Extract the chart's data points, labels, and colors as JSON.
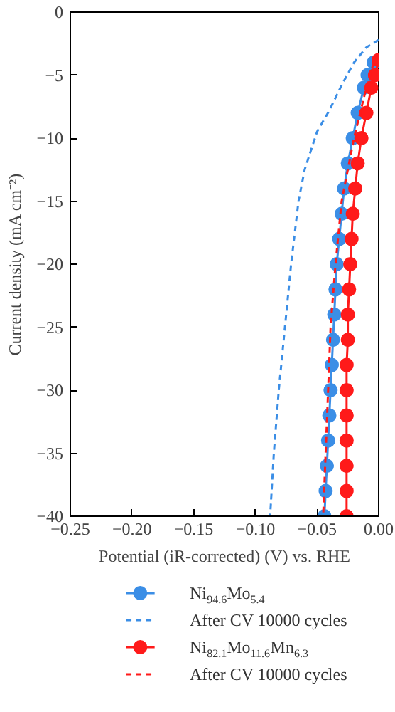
{
  "chart_data": {
    "type": "line",
    "xlabel": "Potential (iR-corrected) (V) vs. RHE",
    "ylabel": "Current density (mA cm⁻²)",
    "xlim": [
      -0.25,
      0.0
    ],
    "ylim": [
      -40,
      0
    ],
    "xticks": [
      {
        "value": -0.25,
        "label": "−0.25"
      },
      {
        "value": -0.2,
        "label": "−0.20"
      },
      {
        "value": -0.15,
        "label": "−0.15"
      },
      {
        "value": -0.1,
        "label": "−0.10"
      },
      {
        "value": -0.05,
        "label": "−0.05"
      },
      {
        "value": 0.0,
        "label": "0.00"
      }
    ],
    "yticks": [
      {
        "value": 0,
        "label": "0"
      },
      {
        "value": -5,
        "label": "−5"
      },
      {
        "value": -10,
        "label": "−10"
      },
      {
        "value": -15,
        "label": "−15"
      },
      {
        "value": -20,
        "label": "−20"
      },
      {
        "value": -25,
        "label": "−25"
      },
      {
        "value": -30,
        "label": "−30"
      },
      {
        "value": -35,
        "label": "−35"
      },
      {
        "value": -40,
        "label": "−40"
      }
    ],
    "grid": false,
    "legend": "bottom",
    "series": [
      {
        "name": "Ni$_{94.6}$Mo$_{5.4}$",
        "color": "#3b8ee6",
        "marker": "circle",
        "line_style": "solid",
        "x": [
          -0.004,
          -0.009,
          -0.012,
          -0.017,
          -0.021,
          -0.025,
          -0.028,
          -0.03,
          -0.032,
          -0.034,
          -0.035,
          -0.036,
          -0.037,
          -0.038,
          -0.039,
          -0.04,
          -0.041,
          -0.042,
          -0.043,
          -0.044
        ],
        "values": [
          -4,
          -5,
          -6,
          -8,
          -10,
          -12,
          -14,
          -16,
          -18,
          -20,
          -22,
          -24,
          -26,
          -28,
          -30,
          -32,
          -34,
          -36,
          -38,
          -40
        ]
      },
      {
        "name": "After CV 10000 cycles",
        "color": "#3b8ee6",
        "marker": "none",
        "line_style": "dashed",
        "x": [
          0.0,
          -0.01,
          -0.02,
          -0.03,
          -0.04,
          -0.05,
          -0.06,
          -0.065,
          -0.071,
          -0.076,
          -0.081,
          -0.085,
          -0.088
        ],
        "values": [
          -2.2,
          -2.8,
          -4,
          -5.8,
          -7.8,
          -9.5,
          -12.5,
          -15,
          -20,
          -25,
          -30,
          -35,
          -40
        ]
      },
      {
        "name": "Ni$_{82.1}$Mo$_{11.6}$Mn$_{6.3}$",
        "color": "#ff1a1a",
        "marker": "circle",
        "line_style": "solid",
        "x": [
          0.0,
          -0.003,
          -0.006,
          -0.01,
          -0.014,
          -0.017,
          -0.019,
          -0.021,
          -0.022,
          -0.023,
          -0.024,
          -0.025,
          -0.025,
          -0.026,
          -0.026,
          -0.026,
          -0.026,
          -0.026,
          -0.026,
          -0.026
        ],
        "values": [
          -3.8,
          -5,
          -6,
          -8,
          -10,
          -12,
          -14,
          -16,
          -18,
          -20,
          -22,
          -24,
          -26,
          -28,
          -30,
          -32,
          -34,
          -36,
          -38,
          -40
        ]
      },
      {
        "name": "After CV 10000 cycles",
        "color": "#ff1a1a",
        "marker": "none",
        "line_style": "dashed",
        "x": [
          -0.004,
          -0.01,
          -0.02,
          -0.03,
          -0.035,
          -0.039,
          -0.041,
          -0.043,
          -0.045
        ],
        "values": [
          -4,
          -6,
          -10,
          -15,
          -20,
          -25,
          -30,
          -35,
          -40
        ]
      }
    ]
  }
}
